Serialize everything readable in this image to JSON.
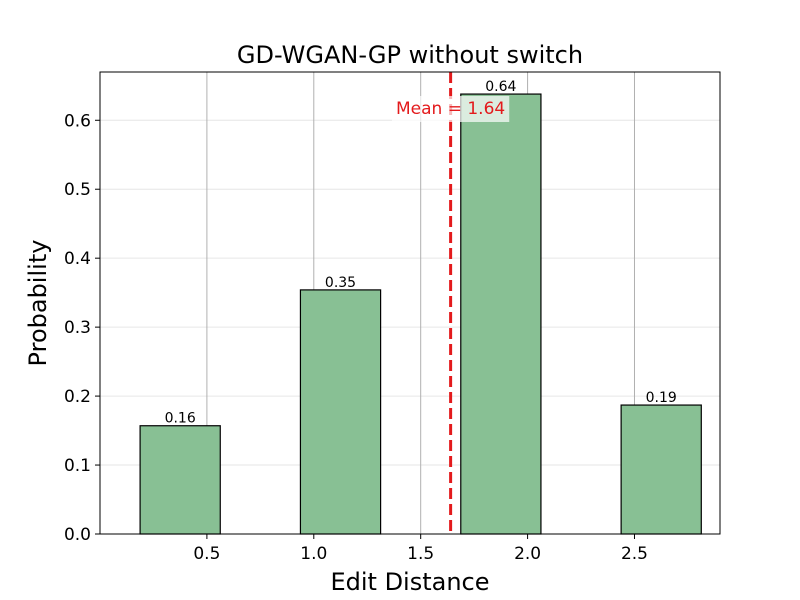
{
  "chart_data": {
    "type": "bar",
    "title": "GD-WGAN-GP without switch",
    "xlabel": "Edit Distance",
    "ylabel": "Probability",
    "xlim": [
      0.0,
      2.9
    ],
    "ylim": [
      0.0,
      0.67
    ],
    "xticks": [
      0.5,
      1.0,
      1.5,
      2.0,
      2.5
    ],
    "xtick_labels": [
      "0.5",
      "1.0",
      "1.5",
      "2.0",
      "2.5"
    ],
    "yticks": [
      0.0,
      0.1,
      0.2,
      0.3,
      0.4,
      0.5,
      0.6
    ],
    "ytick_labels": [
      "0.0",
      "0.1",
      "0.2",
      "0.3",
      "0.4",
      "0.5",
      "0.6"
    ],
    "bar_width": 0.375,
    "bars": [
      {
        "x": 0.375,
        "value": 0.157,
        "label": "0.16"
      },
      {
        "x": 1.125,
        "value": 0.354,
        "label": "0.35"
      },
      {
        "x": 1.875,
        "value": 0.638,
        "label": "0.64"
      },
      {
        "x": 2.625,
        "value": 0.187,
        "label": "0.19"
      }
    ],
    "mean": {
      "value": 1.64,
      "label": "Mean = 1.64"
    },
    "grid": {
      "x": true,
      "y": true
    },
    "colors": {
      "bar_fill": "#88c094",
      "bar_edge": "#000000",
      "mean_line": "#e31a1c",
      "grid_x": "#b0b0b0",
      "grid_y": "#e6e6e6"
    }
  }
}
